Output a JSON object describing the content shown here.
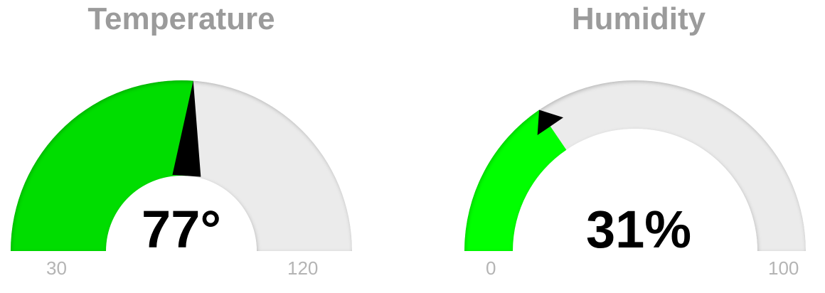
{
  "gauges": [
    {
      "id": "temperature",
      "title": "Temperature",
      "value": 77,
      "value_text": "77°",
      "min": 30,
      "max": 120,
      "min_label": "30",
      "max_label": "120",
      "fill_color": "#00dd00",
      "track_color": "#ebebeb",
      "needle_color": "#000000"
    },
    {
      "id": "humidity",
      "title": "Humidity",
      "value": 31,
      "value_text": "31%",
      "min": 0,
      "max": 100,
      "min_label": "0",
      "max_label": "100",
      "fill_color": "#00ff00",
      "track_color": "#ebebeb",
      "needle_color": "#000000"
    }
  ]
}
